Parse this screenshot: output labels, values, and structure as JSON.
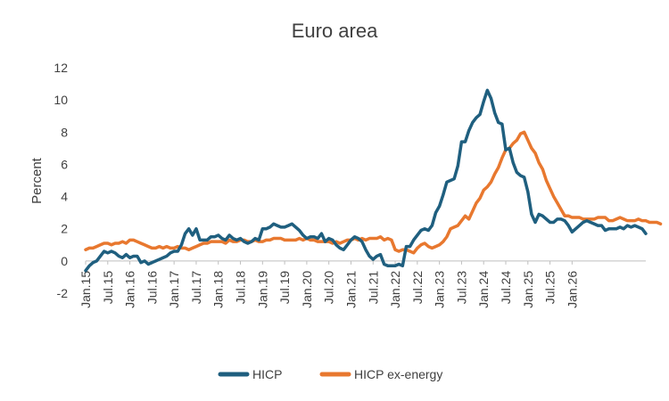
{
  "chart_data": {
    "type": "line",
    "title": "Euro area",
    "ylabel": "Percent",
    "xlabel": "",
    "ylim": [
      -2,
      12
    ],
    "yticks": [
      -2,
      0,
      2,
      4,
      6,
      8,
      10,
      12
    ],
    "grid": false,
    "legend_position": "bottom",
    "x_start": "2015-01",
    "x_end": "2026-01",
    "x_tick_labels": [
      "Jan.15",
      "Jul.15",
      "Jan.16",
      "Jul.16",
      "Jan.17",
      "Jul.17",
      "Jan.18",
      "Jul.18",
      "Jan.19",
      "Jul.19",
      "Jan.20",
      "Jul.20",
      "Jan.21",
      "Jul.21",
      "Jan.22",
      "Jul.22",
      "Jan.23",
      "Jul.23",
      "Jan.24",
      "Jul.24",
      "Jan.25",
      "Jul.25",
      "Jan.26"
    ],
    "series": [
      {
        "name": "HICP",
        "color": "#1f5f7f",
        "values": [
          -0.6,
          -0.3,
          -0.1,
          0.0,
          0.3,
          0.6,
          0.5,
          0.6,
          0.5,
          0.3,
          0.2,
          0.4,
          0.2,
          0.3,
          0.3,
          -0.1,
          0.0,
          -0.2,
          -0.1,
          0.0,
          0.1,
          0.2,
          0.3,
          0.5,
          0.6,
          0.6,
          1.0,
          1.7,
          2.0,
          1.6,
          2.0,
          1.3,
          1.3,
          1.3,
          1.5,
          1.5,
          1.6,
          1.4,
          1.3,
          1.6,
          1.4,
          1.3,
          1.4,
          1.2,
          1.1,
          1.2,
          1.4,
          1.3,
          2.0,
          2.0,
          2.1,
          2.3,
          2.2,
          2.1,
          2.1,
          2.2,
          2.3,
          2.1,
          1.9,
          1.6,
          1.4,
          1.5,
          1.5,
          1.4,
          1.7,
          1.2,
          1.4,
          1.3,
          1.0,
          0.8,
          0.7,
          1.0,
          1.3,
          1.5,
          1.4,
          1.2,
          0.7,
          0.3,
          0.1,
          0.3,
          0.4,
          -0.2,
          -0.3,
          -0.3,
          -0.3,
          -0.2,
          -0.3,
          0.9,
          0.9,
          1.3,
          1.6,
          1.9,
          2.0,
          1.9,
          2.2,
          3.0,
          3.4,
          4.1,
          4.9,
          5.0,
          5.1,
          5.9,
          7.4,
          7.4,
          8.1,
          8.6,
          8.9,
          9.1,
          9.9,
          10.6,
          10.1,
          9.2,
          8.6,
          8.5,
          6.9,
          7.0,
          6.1,
          5.5,
          5.3,
          5.2,
          4.3,
          2.9,
          2.4,
          2.9,
          2.8,
          2.6,
          2.4,
          2.4,
          2.6,
          2.6,
          2.5,
          2.2,
          1.8,
          2.0,
          2.2,
          2.4,
          2.5,
          2.4,
          2.3,
          2.2,
          2.2,
          1.9,
          2.0,
          2.0,
          2.0,
          2.1,
          2.0,
          2.2,
          2.1,
          2.2,
          2.1,
          2.0,
          1.7
        ]
      },
      {
        "name": "HICP ex-energy",
        "color": "#e8782f",
        "values": [
          0.7,
          0.8,
          0.8,
          0.9,
          1.0,
          1.1,
          1.1,
          1.0,
          1.1,
          1.1,
          1.2,
          1.1,
          1.3,
          1.3,
          1.2,
          1.1,
          1.0,
          0.9,
          0.8,
          0.8,
          0.9,
          0.8,
          0.9,
          0.8,
          0.8,
          0.9,
          0.8,
          0.8,
          0.7,
          0.8,
          0.9,
          1.0,
          1.1,
          1.1,
          1.2,
          1.2,
          1.2,
          1.2,
          1.1,
          1.3,
          1.2,
          1.2,
          1.3,
          1.3,
          1.2,
          1.2,
          1.3,
          1.2,
          1.2,
          1.3,
          1.3,
          1.4,
          1.4,
          1.4,
          1.3,
          1.3,
          1.3,
          1.3,
          1.4,
          1.3,
          1.4,
          1.3,
          1.3,
          1.2,
          1.2,
          1.2,
          1.2,
          1.1,
          1.2,
          1.1,
          1.2,
          1.3,
          1.3,
          1.4,
          1.3,
          1.4,
          1.3,
          1.4,
          1.4,
          1.4,
          1.5,
          1.3,
          1.4,
          1.3,
          0.7,
          0.6,
          0.7,
          0.7,
          0.6,
          0.5,
          0.8,
          1.0,
          1.1,
          0.9,
          0.8,
          0.9,
          1.0,
          1.2,
          1.5,
          2.0,
          2.1,
          2.2,
          2.5,
          2.8,
          2.6,
          3.1,
          3.6,
          3.9,
          4.4,
          4.6,
          4.9,
          5.4,
          5.8,
          6.4,
          6.9,
          7.0,
          7.3,
          7.5,
          7.9,
          8.0,
          7.5,
          7.0,
          6.7,
          6.1,
          5.7,
          5.0,
          4.5,
          4.0,
          3.6,
          3.2,
          2.8,
          2.8,
          2.7,
          2.7,
          2.7,
          2.6,
          2.6,
          2.6,
          2.6,
          2.7,
          2.7,
          2.7,
          2.5,
          2.5,
          2.6,
          2.7,
          2.6,
          2.5,
          2.5,
          2.5,
          2.6,
          2.5,
          2.5,
          2.4,
          2.4,
          2.4,
          2.3
        ]
      }
    ]
  }
}
